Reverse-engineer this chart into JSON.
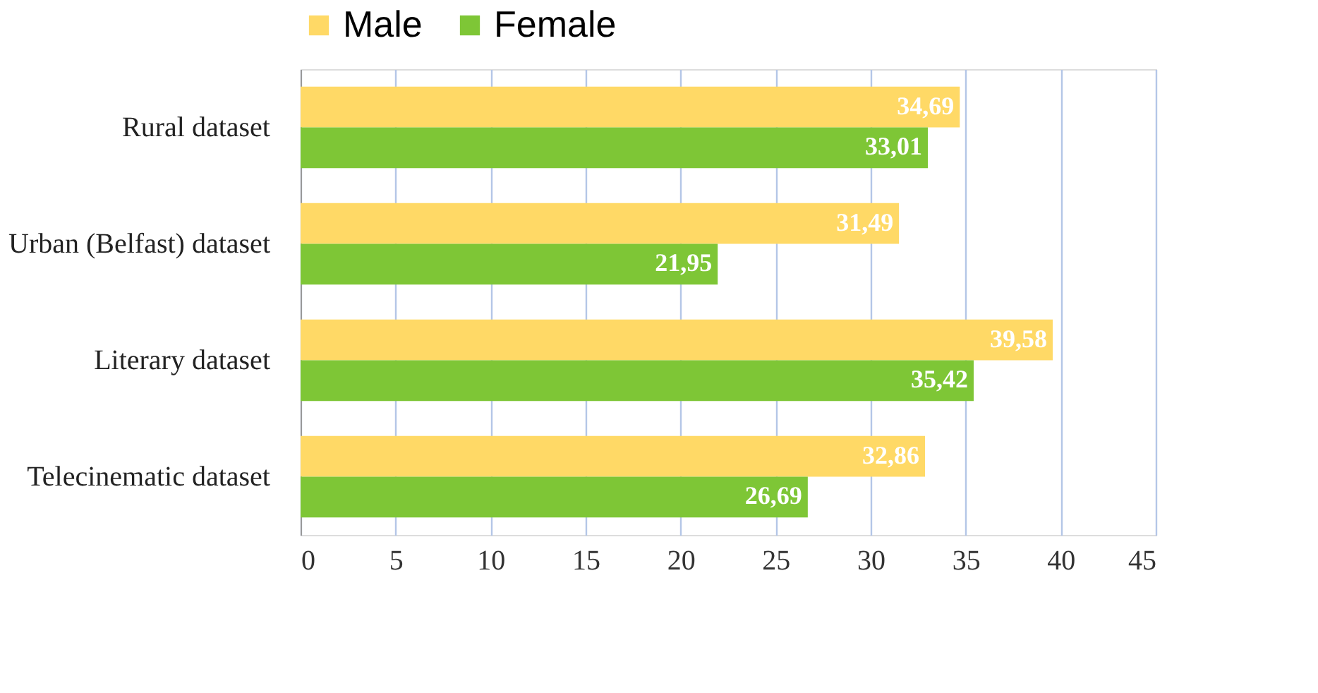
{
  "chart_data": {
    "type": "bar",
    "orientation": "horizontal",
    "categories": [
      "Rural dataset",
      "Urban (Belfast) dataset",
      "Literary dataset",
      "Telecinematic dataset"
    ],
    "series": [
      {
        "name": "Male",
        "color": "#ffd966",
        "values": [
          34.69,
          31.49,
          39.58,
          32.86
        ],
        "value_labels": [
          "34,69",
          "31,49",
          "39,58",
          "32,86"
        ]
      },
      {
        "name": "Female",
        "color": "#7ec636",
        "values": [
          33.01,
          21.95,
          35.42,
          26.69
        ],
        "value_labels": [
          "33,01",
          "21,95",
          "35,42",
          "26,69"
        ]
      }
    ],
    "xlim": [
      0,
      45
    ],
    "xticks": [
      0,
      5,
      10,
      15,
      20,
      25,
      30,
      35,
      40,
      45
    ],
    "grid": "x",
    "legend": "top"
  }
}
